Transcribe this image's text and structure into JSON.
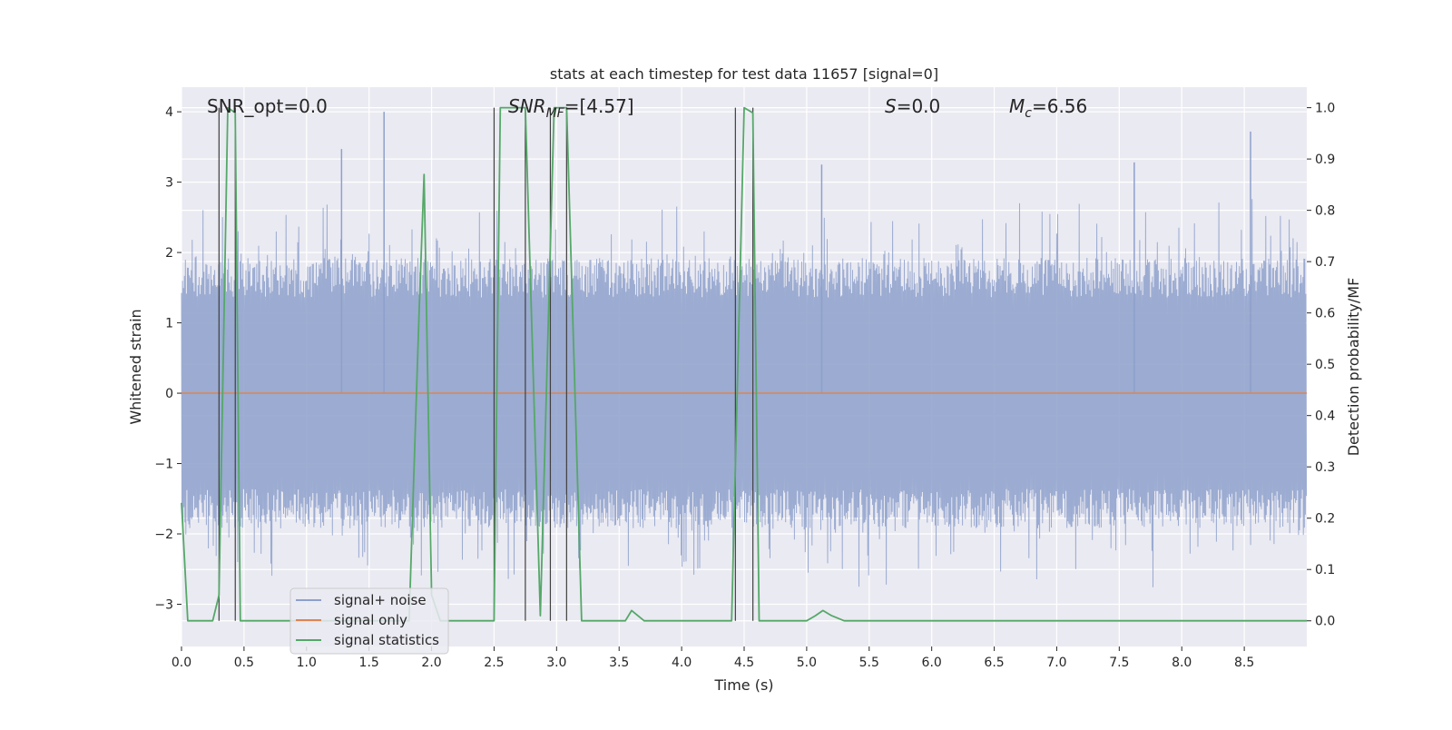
{
  "chart_data": {
    "type": "line",
    "title": "stats at each timestep for test data 11657 [signal=0]",
    "xlabel": "Time (s)",
    "ylabel": "Whitened strain",
    "y2label": "Detection probability/MF",
    "xlim": [
      0.0,
      9.0
    ],
    "ylim": [
      -3.6,
      4.35
    ],
    "y2lim": [
      -0.05,
      1.04
    ],
    "xticks": [
      0.0,
      0.5,
      1.0,
      1.5,
      2.0,
      2.5,
      3.0,
      3.5,
      4.0,
      4.5,
      5.0,
      5.5,
      6.0,
      6.5,
      7.0,
      7.5,
      8.0,
      8.5
    ],
    "xtick_labels": [
      "0.0",
      "0.5",
      "1.0",
      "1.5",
      "2.0",
      "2.5",
      "3.0",
      "3.5",
      "4.0",
      "4.5",
      "5.0",
      "5.5",
      "6.0",
      "6.5",
      "7.0",
      "7.5",
      "8.0",
      "8.5"
    ],
    "yticks": [
      -3,
      -2,
      -1,
      0,
      1,
      2,
      3,
      4
    ],
    "ytick_labels": [
      "−3",
      "−2",
      "−1",
      "0",
      "1",
      "2",
      "3",
      "4"
    ],
    "y2ticks": [
      0.0,
      0.1,
      0.2,
      0.3,
      0.4,
      0.5,
      0.6,
      0.7,
      0.8,
      0.9,
      1.0
    ],
    "y2tick_labels": [
      "0.0",
      "0.1",
      "0.2",
      "0.3",
      "0.4",
      "0.5",
      "0.6",
      "0.7",
      "0.8",
      "0.9",
      "1.0"
    ],
    "grid": true,
    "legend_position": "lower-left",
    "annotations": {
      "snr_opt": "SNR_opt=0.0",
      "snr_mf_symbol": "SNR",
      "snr_mf_sub": "MF",
      "snr_mf_value": "=[4.57]",
      "s_symbol": "S",
      "s_value": "=0.0",
      "mc_symbol": "M",
      "mc_sub": "c",
      "mc_value": "=6.56"
    },
    "series": [
      {
        "name": "signal+ noise",
        "color": "#8da0cb",
        "note_noise": {
          "typical_amplitude": 1.6,
          "max": 4.0,
          "min": -3.3,
          "samples_per_second": 256
        },
        "peaks": [
          [
            1.62,
            4.0
          ],
          [
            8.55,
            3.72
          ],
          [
            1.28,
            3.47
          ],
          [
            5.12,
            3.25
          ],
          [
            7.62,
            3.28
          ]
        ]
      },
      {
        "name": "signal only",
        "color": "#dd8452",
        "x": [
          0.0,
          9.0
        ],
        "y": [
          0.0,
          0.0
        ]
      },
      {
        "name": "signal statistics",
        "color": "#55a868",
        "axis": "right",
        "x": [
          0.0,
          0.05,
          0.25,
          0.3,
          0.37,
          0.43,
          0.47,
          0.5,
          1.82,
          1.9,
          1.94,
          2.0,
          2.07,
          2.5,
          2.55,
          2.75,
          2.87,
          2.98,
          3.08,
          3.2,
          3.33,
          3.45,
          3.55,
          3.6,
          3.7,
          4.4,
          4.5,
          4.57,
          4.62,
          5.0,
          5.07,
          5.13,
          5.2,
          5.3,
          9.0
        ],
        "y": [
          0.23,
          0.0,
          0.0,
          0.05,
          1.0,
          0.99,
          0.0,
          0.0,
          0.0,
          0.6,
          0.87,
          0.05,
          0.0,
          0.0,
          1.0,
          1.0,
          0.01,
          1.0,
          1.0,
          0.0,
          0.0,
          0.0,
          0.0,
          0.02,
          0.0,
          0.0,
          1.0,
          0.99,
          0.0,
          0.0,
          0.01,
          0.02,
          0.01,
          0.0,
          0.0
        ]
      }
    ],
    "vertical_markers": {
      "color": "#404040",
      "x": [
        0.3,
        0.43,
        2.5,
        2.75,
        2.95,
        3.08,
        4.43,
        4.57
      ]
    }
  }
}
